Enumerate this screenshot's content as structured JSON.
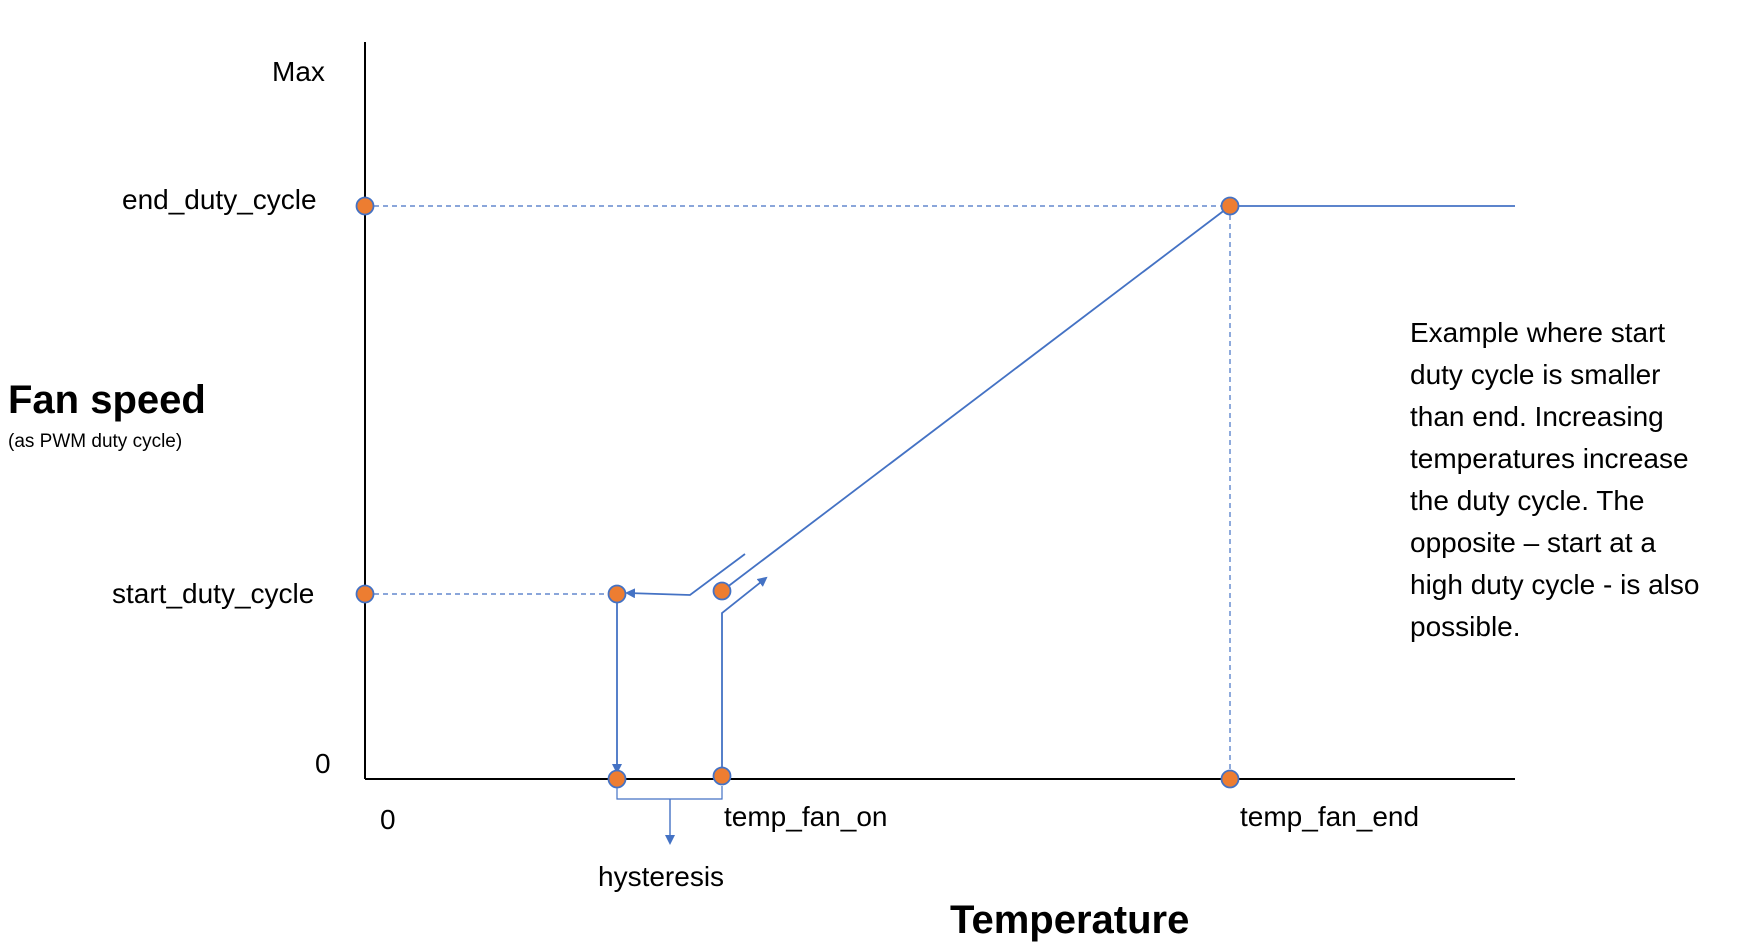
{
  "y_axis": {
    "title": "Fan speed",
    "subtitle": "(as PWM duty cycle)",
    "ticks": {
      "max": "Max",
      "end": "end_duty_cycle",
      "start": "start_duty_cycle",
      "zero": "0"
    }
  },
  "x_axis": {
    "title": "Temperature",
    "ticks": {
      "zero": "0",
      "fan_on": "temp_fan_on",
      "fan_end": "temp_fan_end"
    }
  },
  "hysteresis_label": "hysteresis",
  "note": {
    "lines": [
      "Example where start",
      "duty cycle is smaller",
      "than end. Increasing",
      "temperatures increase",
      "the duty cycle. The",
      "opposite – start at a",
      "high duty cycle - is also",
      "possible."
    ]
  },
  "colors": {
    "curve": "#4472C4",
    "point_fill": "#ED7D31",
    "point_stroke": "#4472C4",
    "axis": "#000000"
  }
}
